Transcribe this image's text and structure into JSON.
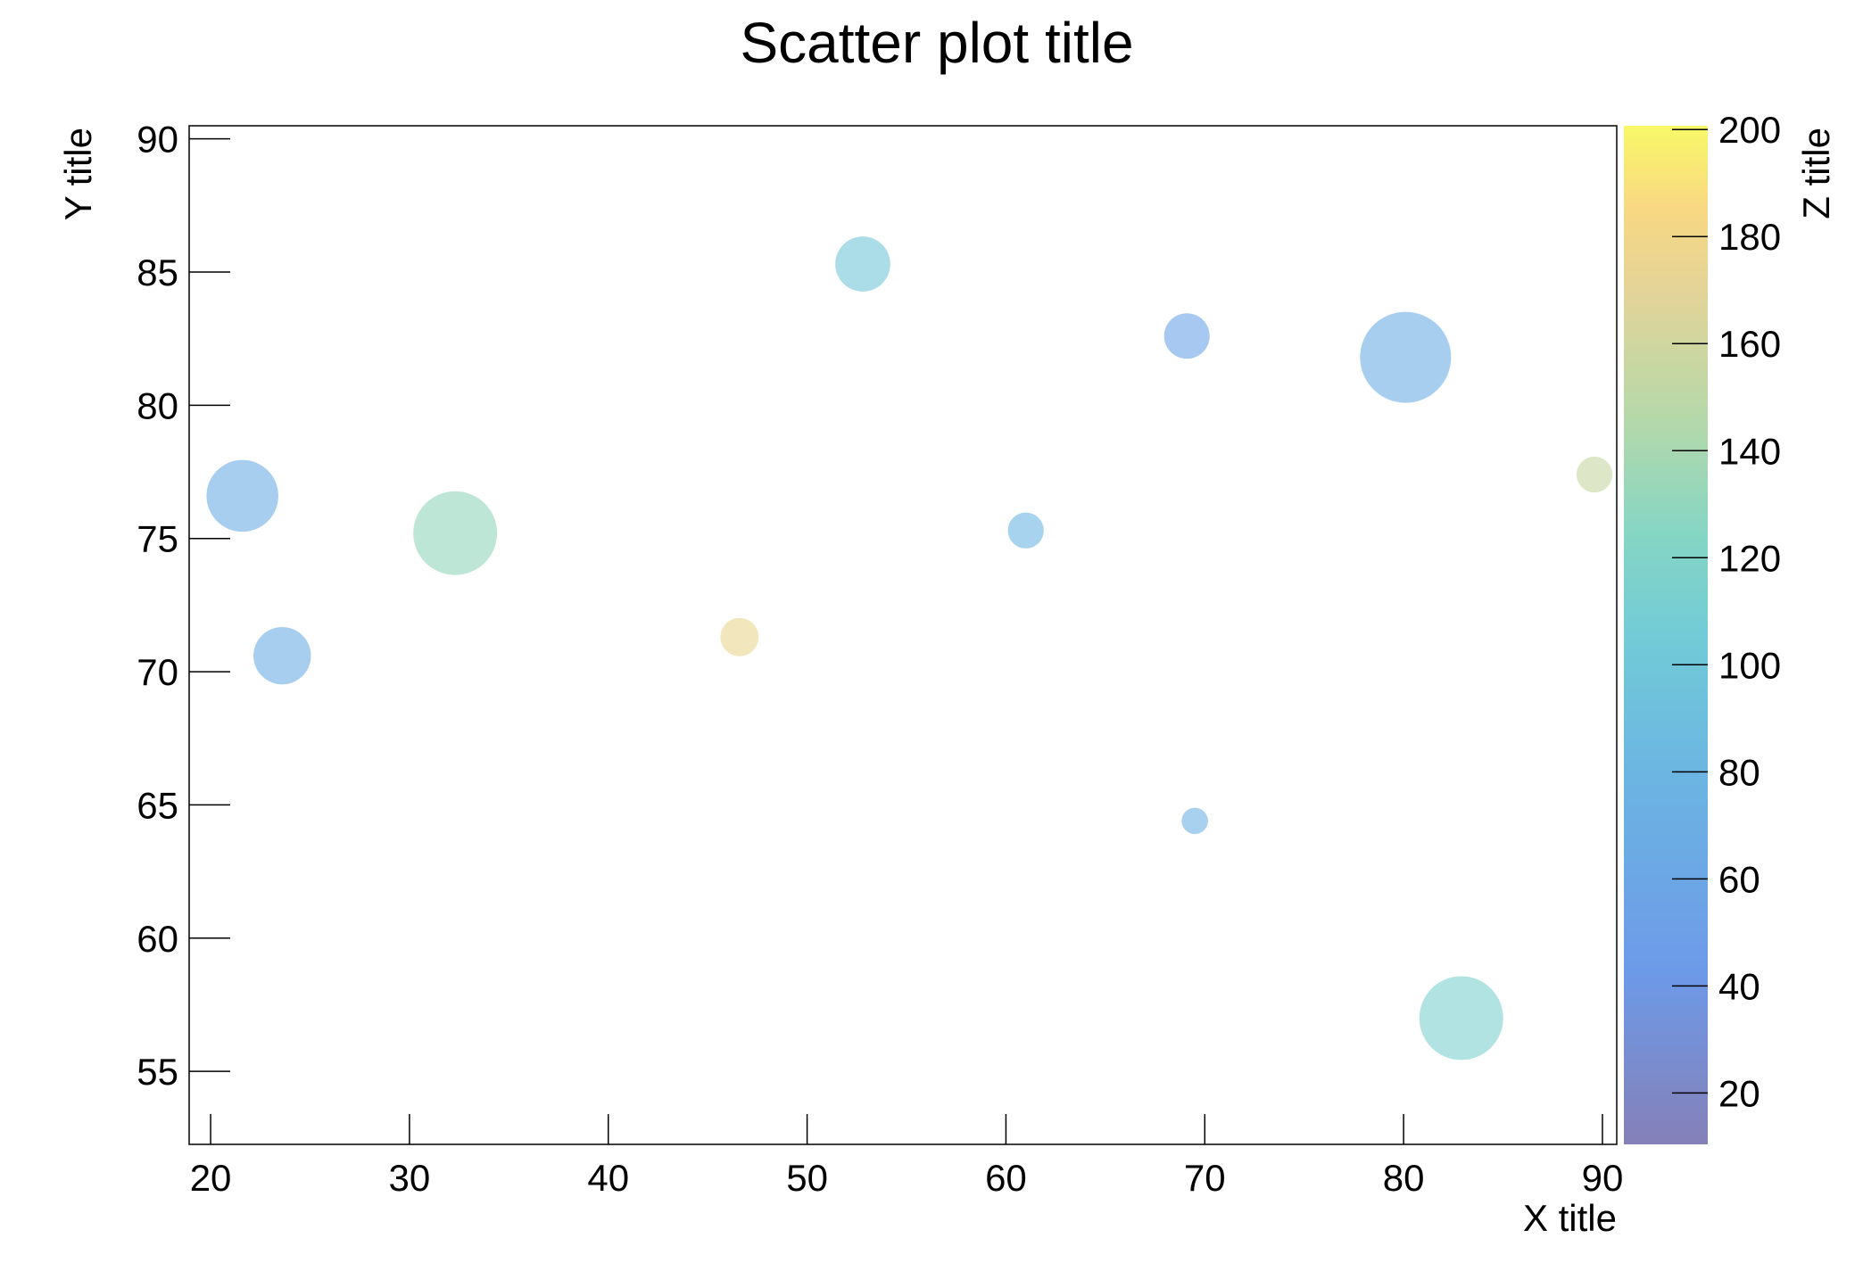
{
  "chart_data": {
    "type": "scatter",
    "title": "Scatter plot title",
    "x_label": "X title",
    "y_label": "Y title",
    "z_label": "Z title",
    "x": [
      21.6,
      23.6,
      32.3,
      46.6,
      52.8,
      61.0,
      69.1,
      69.5,
      80.1,
      82.9,
      89.6
    ],
    "y": [
      76.6,
      70.6,
      75.2,
      71.3,
      85.3,
      75.3,
      82.6,
      64.4,
      81.8,
      57.0,
      77.4
    ],
    "z": [
      70,
      70,
      130,
      175,
      100,
      80,
      55,
      75,
      70,
      115,
      155
    ],
    "sizes": [
      30,
      24,
      35,
      16,
      23,
      15,
      19,
      11,
      38,
      35,
      15
    ],
    "xlim": [
      18.92,
      90.72
    ],
    "ylim": [
      52.26,
      90.49
    ],
    "zlim": [
      10.4,
      200.7
    ],
    "xticks": [
      20,
      30,
      40,
      50,
      60,
      70,
      80,
      90
    ],
    "yticks": [
      55,
      60,
      65,
      70,
      75,
      80,
      85,
      90
    ],
    "zticks": [
      20,
      40,
      60,
      80,
      100,
      120,
      140,
      160,
      180,
      200
    ]
  }
}
